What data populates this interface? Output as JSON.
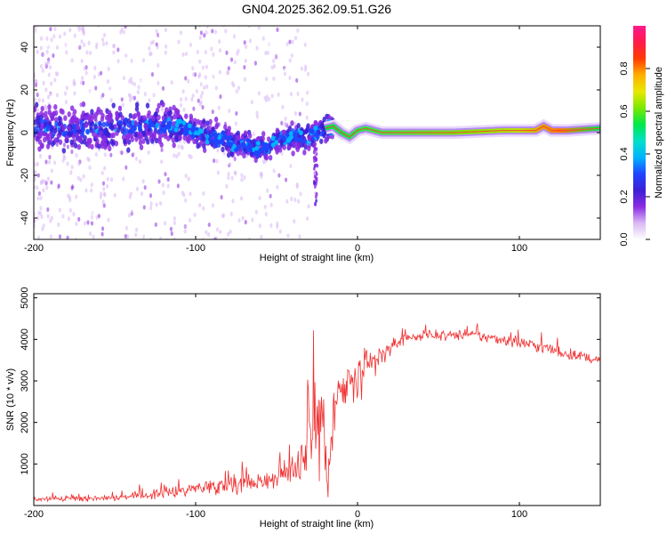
{
  "title": "GN04.2025.362.09.51.G26",
  "chart_data": [
    {
      "type": "heatmap",
      "name": "spectrogram",
      "xlabel": "Height of straight line (km)",
      "ylabel": "Frequency (Hz)",
      "xlim": [
        -200,
        150
      ],
      "ylim": [
        -50,
        50
      ],
      "xticks": [
        -200,
        -100,
        0,
        100
      ],
      "yticks": [
        -40,
        -20,
        0,
        20,
        40
      ],
      "colorbar": {
        "label": "Normalized spectral amplitude",
        "range": [
          0,
          1
        ],
        "ticks": [
          "0.0",
          "0.2",
          "0.4",
          "0.6",
          "0.8"
        ],
        "colors": [
          "#ffffff",
          "#d9b8f5",
          "#8a2be2",
          "#3b1fd6",
          "#1f45ff",
          "#00b4ff",
          "#00e0c8",
          "#00e84a",
          "#7be800",
          "#e8e800",
          "#ffb000",
          "#ff3b00",
          "#ff1a4a",
          "#ff1a8c"
        ]
      },
      "centerline": [
        {
          "x": -200,
          "f": 3
        },
        {
          "x": -180,
          "f": 2
        },
        {
          "x": -160,
          "f": 2
        },
        {
          "x": -140,
          "f": 3
        },
        {
          "x": -120,
          "f": 3
        },
        {
          "x": -110,
          "f": 3
        },
        {
          "x": -100,
          "f": 0
        },
        {
          "x": -90,
          "f": -2
        },
        {
          "x": -80,
          "f": -4
        },
        {
          "x": -70,
          "f": -6
        },
        {
          "x": -60,
          "f": -8
        },
        {
          "x": -50,
          "f": -4
        },
        {
          "x": -40,
          "f": -2
        },
        {
          "x": -30,
          "f": -2
        },
        {
          "x": -25,
          "f": 0
        },
        {
          "x": -20,
          "f": 2
        },
        {
          "x": -15,
          "f": 3
        },
        {
          "x": -10,
          "f": 0
        },
        {
          "x": -5,
          "f": -2
        },
        {
          "x": 0,
          "f": 1
        },
        {
          "x": 5,
          "f": 2
        },
        {
          "x": 10,
          "f": 1
        },
        {
          "x": 15,
          "f": 0
        },
        {
          "x": 30,
          "f": 0
        },
        {
          "x": 60,
          "f": 0
        },
        {
          "x": 90,
          "f": 1
        },
        {
          "x": 110,
          "f": 1
        },
        {
          "x": 115,
          "f": 3
        },
        {
          "x": 120,
          "f": 1
        },
        {
          "x": 130,
          "f": 1
        },
        {
          "x": 150,
          "f": 2
        }
      ]
    },
    {
      "type": "line",
      "name": "snr",
      "xlabel": "Height of straight line (km)",
      "ylabel": "SNR (10 * v/v)",
      "xlim": [
        -200,
        150
      ],
      "ylim": [
        0,
        5100
      ],
      "xticks": [
        -200,
        -100,
        0,
        100
      ],
      "yticks": [
        1000,
        2000,
        3000,
        4000,
        5000
      ],
      "color": "#f03030",
      "envelope": [
        {
          "x": -200,
          "mean": 150,
          "noise": 90
        },
        {
          "x": -160,
          "mean": 180,
          "noise": 100
        },
        {
          "x": -140,
          "mean": 220,
          "noise": 120
        },
        {
          "x": -120,
          "mean": 300,
          "noise": 180
        },
        {
          "x": -100,
          "mean": 420,
          "noise": 260
        },
        {
          "x": -80,
          "mean": 520,
          "noise": 320
        },
        {
          "x": -60,
          "mean": 580,
          "noise": 320
        },
        {
          "x": -40,
          "mean": 800,
          "noise": 450
        },
        {
          "x": -30,
          "mean": 1500,
          "noise": 1400
        },
        {
          "x": -25,
          "mean": 2000,
          "noise": 2200
        },
        {
          "x": -20,
          "mean": 1600,
          "noise": 1800
        },
        {
          "x": -17,
          "mean": 900,
          "noise": 900
        },
        {
          "x": -15,
          "mean": 2200,
          "noise": 1200
        },
        {
          "x": -10,
          "mean": 2700,
          "noise": 1000
        },
        {
          "x": 0,
          "mean": 3000,
          "noise": 900
        },
        {
          "x": 10,
          "mean": 3400,
          "noise": 700
        },
        {
          "x": 20,
          "mean": 3800,
          "noise": 300
        },
        {
          "x": 30,
          "mean": 4050,
          "noise": 180
        },
        {
          "x": 50,
          "mean": 4100,
          "noise": 160
        },
        {
          "x": 70,
          "mean": 4100,
          "noise": 180
        },
        {
          "x": 90,
          "mean": 4000,
          "noise": 220
        },
        {
          "x": 110,
          "mean": 3850,
          "noise": 240
        },
        {
          "x": 130,
          "mean": 3650,
          "noise": 200
        },
        {
          "x": 150,
          "mean": 3500,
          "noise": 160
        }
      ]
    }
  ]
}
